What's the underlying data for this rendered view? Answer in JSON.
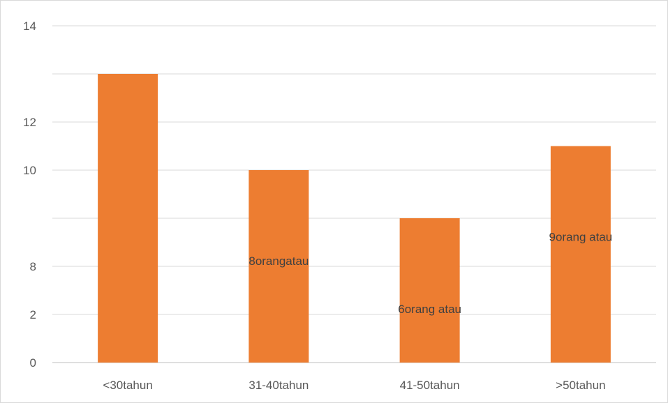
{
  "chart_data": {
    "type": "bar",
    "categories": [
      "<30tahun",
      "31-40tahun",
      "41-50tahun",
      ">50tahun"
    ],
    "values": [
      12,
      8,
      6,
      9
    ],
    "y_tick_labels": [
      "0",
      "2",
      "8",
      "10",
      "12",
      "14"
    ],
    "data_labels": [
      "",
      "8orangatau",
      "6orang atau",
      "9orang atau"
    ],
    "ylim": [
      0,
      14
    ],
    "grid": true,
    "legend": "none",
    "colors": {
      "bar": "#ED7D31",
      "grid": "#d9d9d9",
      "axis_text": "#595959"
    }
  }
}
